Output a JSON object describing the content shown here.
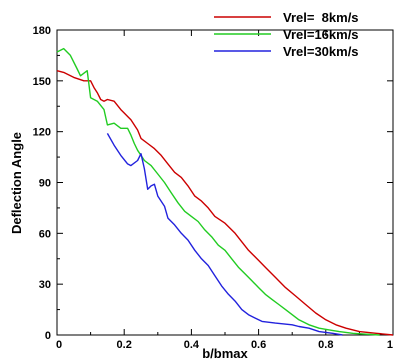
{
  "chart_data": {
    "type": "line",
    "title": "",
    "xlabel": "b/bmax",
    "ylabel": "Deflection Angle",
    "xlim": [
      0,
      1
    ],
    "ylim": [
      0,
      180
    ],
    "x_ticks": [
      "0",
      "0.2",
      "0.4",
      "0.6",
      "0.8",
      "1"
    ],
    "y_ticks": [
      "0",
      "30",
      "60",
      "90",
      "120",
      "150",
      "180"
    ],
    "grid": false,
    "legend_position": "top-right",
    "series": [
      {
        "name": "Vrel=  8km/s",
        "color": "#cc0000",
        "points": [
          [
            0,
            156
          ],
          [
            0.02,
            155
          ],
          [
            0.05,
            152
          ],
          [
            0.08,
            150
          ],
          [
            0.1,
            150
          ],
          [
            0.11,
            146
          ],
          [
            0.12,
            143
          ],
          [
            0.13,
            139
          ],
          [
            0.14,
            138
          ],
          [
            0.15,
            139
          ],
          [
            0.17,
            138
          ],
          [
            0.19,
            133
          ],
          [
            0.2,
            131
          ],
          [
            0.22,
            127
          ],
          [
            0.24,
            121
          ],
          [
            0.25,
            116
          ],
          [
            0.27,
            113
          ],
          [
            0.29,
            110
          ],
          [
            0.31,
            106
          ],
          [
            0.33,
            101
          ],
          [
            0.35,
            96
          ],
          [
            0.37,
            93
          ],
          [
            0.39,
            88
          ],
          [
            0.41,
            82
          ],
          [
            0.43,
            79
          ],
          [
            0.45,
            75
          ],
          [
            0.47,
            70
          ],
          [
            0.5,
            66
          ],
          [
            0.53,
            60
          ],
          [
            0.55,
            55
          ],
          [
            0.57,
            50
          ],
          [
            0.6,
            44
          ],
          [
            0.62,
            40
          ],
          [
            0.65,
            34
          ],
          [
            0.68,
            28
          ],
          [
            0.71,
            23
          ],
          [
            0.74,
            18
          ],
          [
            0.77,
            13
          ],
          [
            0.8,
            9
          ],
          [
            0.83,
            6
          ],
          [
            0.86,
            4
          ],
          [
            0.9,
            2
          ],
          [
            0.95,
            1
          ],
          [
            1.0,
            0
          ]
        ]
      },
      {
        "name": "Vrel=16km/s",
        "color": "#22cc22",
        "points": [
          [
            0,
            167
          ],
          [
            0.02,
            169
          ],
          [
            0.04,
            165
          ],
          [
            0.06,
            157
          ],
          [
            0.07,
            153
          ],
          [
            0.09,
            156
          ],
          [
            0.1,
            140
          ],
          [
            0.12,
            138
          ],
          [
            0.14,
            133
          ],
          [
            0.15,
            124
          ],
          [
            0.17,
            125
          ],
          [
            0.19,
            122
          ],
          [
            0.21,
            122
          ],
          [
            0.22,
            118
          ],
          [
            0.23,
            113
          ],
          [
            0.24,
            109
          ],
          [
            0.26,
            103
          ],
          [
            0.28,
            100
          ],
          [
            0.3,
            95
          ],
          [
            0.32,
            90
          ],
          [
            0.34,
            84
          ],
          [
            0.36,
            78
          ],
          [
            0.38,
            73
          ],
          [
            0.4,
            70
          ],
          [
            0.42,
            67
          ],
          [
            0.44,
            62
          ],
          [
            0.46,
            58
          ],
          [
            0.48,
            53
          ],
          [
            0.5,
            50
          ],
          [
            0.52,
            45
          ],
          [
            0.54,
            40
          ],
          [
            0.56,
            36
          ],
          [
            0.58,
            32
          ],
          [
            0.6,
            28
          ],
          [
            0.62,
            24
          ],
          [
            0.64,
            21
          ],
          [
            0.66,
            18
          ],
          [
            0.68,
            15
          ],
          [
            0.7,
            12
          ],
          [
            0.72,
            9
          ],
          [
            0.75,
            6
          ],
          [
            0.78,
            4
          ],
          [
            0.81,
            3
          ],
          [
            0.84,
            2
          ],
          [
            0.88,
            1
          ],
          [
            0.92,
            0.5
          ],
          [
            0.96,
            0
          ]
        ]
      },
      {
        "name": "Vrel=30km/s",
        "color": "#2222dd",
        "points": [
          [
            0.15,
            119
          ],
          [
            0.17,
            112
          ],
          [
            0.19,
            106
          ],
          [
            0.21,
            101
          ],
          [
            0.22,
            100
          ],
          [
            0.24,
            103
          ],
          [
            0.25,
            107
          ],
          [
            0.26,
            98
          ],
          [
            0.27,
            86
          ],
          [
            0.28,
            88
          ],
          [
            0.29,
            89
          ],
          [
            0.3,
            82
          ],
          [
            0.32,
            76
          ],
          [
            0.33,
            69
          ],
          [
            0.35,
            65
          ],
          [
            0.37,
            60
          ],
          [
            0.39,
            56
          ],
          [
            0.41,
            50
          ],
          [
            0.43,
            45
          ],
          [
            0.45,
            41
          ],
          [
            0.47,
            35
          ],
          [
            0.49,
            29
          ],
          [
            0.51,
            24
          ],
          [
            0.53,
            20
          ],
          [
            0.55,
            15
          ],
          [
            0.57,
            12
          ],
          [
            0.59,
            10
          ],
          [
            0.61,
            8
          ],
          [
            0.65,
            7
          ],
          [
            0.7,
            6
          ],
          [
            0.72,
            5
          ],
          [
            0.75,
            4
          ],
          [
            0.78,
            2
          ],
          [
            0.82,
            1
          ],
          [
            0.85,
            0
          ]
        ]
      }
    ]
  }
}
